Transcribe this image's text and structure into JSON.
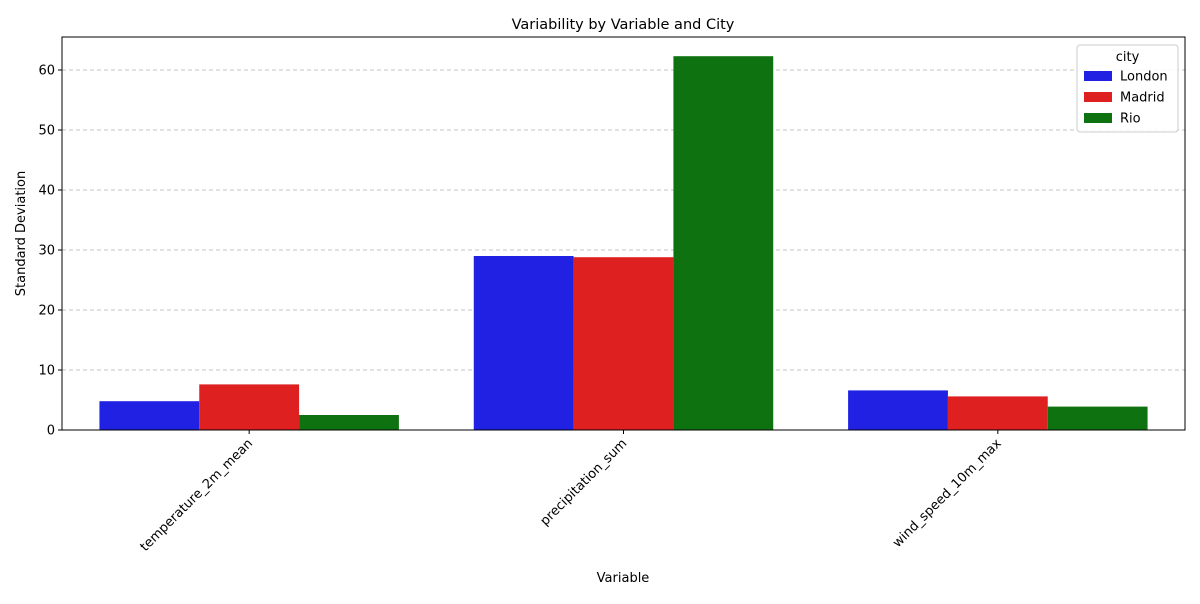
{
  "chart_data": {
    "type": "bar",
    "title": "Variability by Variable and City",
    "xlabel": "Variable",
    "ylabel": "Standard Deviation",
    "categories": [
      "temperature_2m_mean",
      "precipitation_sum",
      "wind_speed_10m_max"
    ],
    "series": [
      {
        "name": "London",
        "color": "#2121e4",
        "values": [
          4.8,
          29.0,
          6.6
        ]
      },
      {
        "name": "Madrid",
        "color": "#df2020",
        "values": [
          7.6,
          28.8,
          5.6
        ]
      },
      {
        "name": "Rio",
        "color": "#0f7210",
        "values": [
          2.5,
          62.3,
          3.9
        ]
      }
    ],
    "ylim": [
      0,
      65.5
    ],
    "yticks": [
      0,
      10,
      20,
      30,
      40,
      50,
      60
    ],
    "grid": "horizontal dashed",
    "legend": {
      "title": "city",
      "placement": "top-right"
    }
  }
}
